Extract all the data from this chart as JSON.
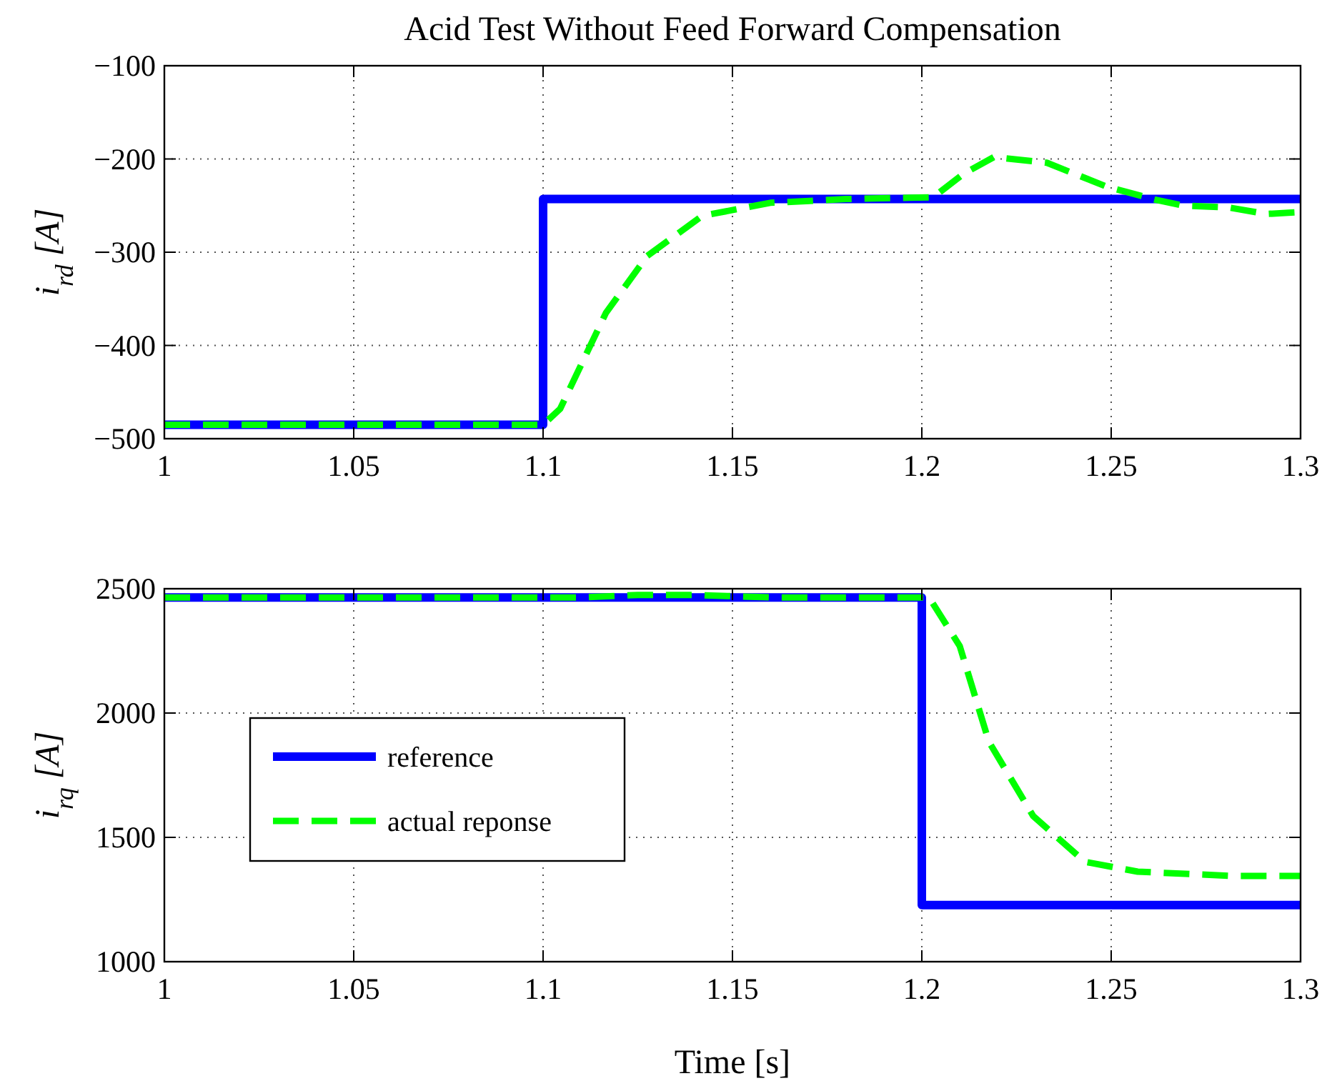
{
  "chart_data": [
    {
      "type": "line",
      "title": "Acid Test Without Feed Forward Compensation",
      "ylabel": "i$_{rd}$ [A]",
      "xlim": [
        1,
        1.3
      ],
      "xticks": [
        1,
        1.05,
        1.1,
        1.15,
        1.2,
        1.25,
        1.3
      ],
      "ylim": [
        -500,
        -100
      ],
      "yticks": [
        {
          "value": -500,
          "label": "−500"
        },
        {
          "value": -400,
          "label": "−400"
        },
        {
          "value": -300,
          "label": "−300"
        },
        {
          "value": -200,
          "label": "−200"
        },
        {
          "value": -100,
          "label": "−100"
        }
      ],
      "grid": true,
      "legend": false,
      "series": [
        {
          "color": "#0000ff",
          "line_style": "solid",
          "x": [
            1,
            1.1,
            1.1,
            1.3
          ],
          "values": [
            -485,
            -485,
            -243,
            -243
          ]
        },
        {
          "color": "#00ff00",
          "line_style": "dashed",
          "x": [
            1,
            1.1,
            1.1045,
            1.1166,
            1.1275,
            1.142,
            1.16,
            1.18,
            1.203,
            1.211,
            1.219,
            1.233,
            1.249,
            1.262,
            1.269,
            1.281,
            1.291,
            1.3
          ],
          "values": [
            -485,
            -485,
            -468,
            -365,
            -304,
            -261,
            -247,
            -243,
            -241,
            -216,
            -198,
            -204,
            -230,
            -244,
            -250,
            -252,
            -259,
            -257
          ]
        }
      ]
    },
    {
      "type": "line",
      "xlabel": "Time [s]",
      "ylabel": "i$_{rq}$ [A]",
      "xlim": [
        1,
        1.3
      ],
      "xticks": [
        1,
        1.05,
        1.1,
        1.15,
        1.2,
        1.25,
        1.3
      ],
      "ylim": [
        1000,
        2500
      ],
      "yticks": [
        1000,
        1500,
        2000,
        2500
      ],
      "grid": true,
      "legend": "left",
      "series": [
        {
          "name": "reference",
          "color": "#0000ff",
          "line_style": "solid",
          "x": [
            1,
            1.2,
            1.2,
            1.3
          ],
          "values": [
            2465,
            2465,
            1228,
            1228
          ]
        },
        {
          "name": "actual reponse",
          "color": "#00ff00",
          "line_style": "dashed",
          "x": [
            1,
            1.11,
            1.125,
            1.14,
            1.16,
            1.2019,
            1.21,
            1.2177,
            1.2294,
            1.243,
            1.257,
            1.282,
            1.3
          ],
          "values": [
            2465,
            2465,
            2475,
            2475,
            2465,
            2465,
            2270,
            1885,
            1586,
            1402,
            1362,
            1345,
            1345
          ]
        }
      ]
    }
  ]
}
